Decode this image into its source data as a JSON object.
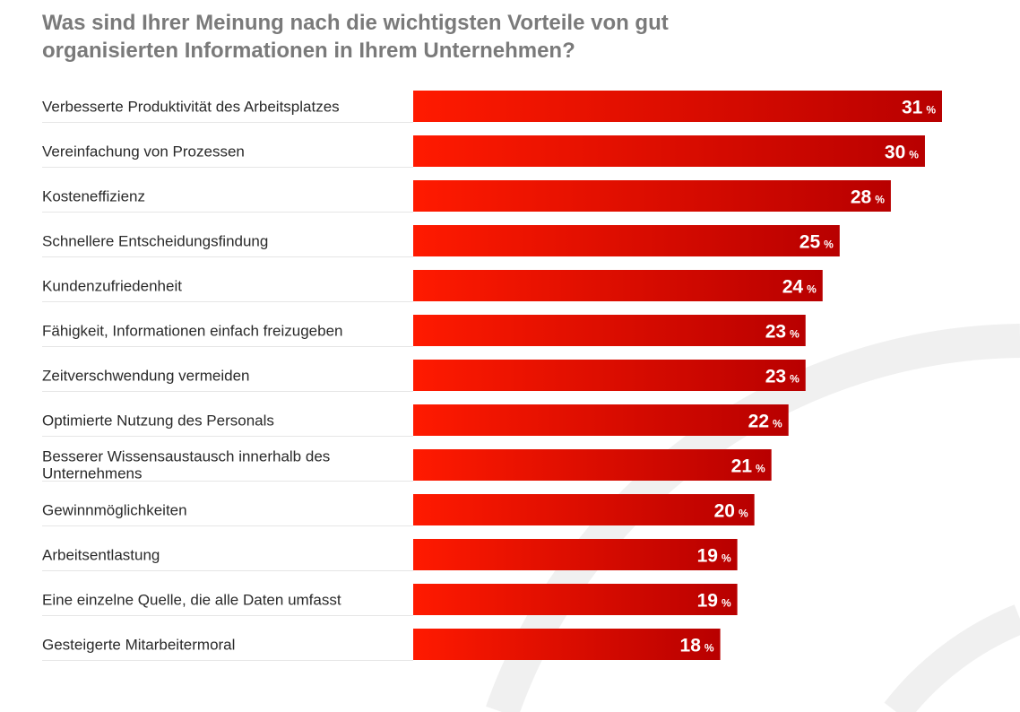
{
  "title": "Was sind Ihrer Meinung nach die wichtigsten Vorteile von gut organisierten Informationen in Ihrem Unternehmen?",
  "colors": {
    "bar_start": "#ff1a00",
    "bar_end": "#b80000",
    "separator": "#e6e6e6",
    "background_arc": "#f0f0f0"
  },
  "chart_data": {
    "type": "bar",
    "orientation": "horizontal",
    "unit": "%",
    "categories": [
      "Verbesserte Produktivität des Arbeitsplatzes",
      "Vereinfachung von Prozessen",
      "Kosteneffizienz",
      "Schnellere Entscheidungsfindung",
      "Kundenzufriedenheit",
      "Fähigkeit, Informationen einfach freizugeben",
      "Zeitverschwendung vermeiden",
      "Optimierte Nutzung des Personals",
      "Besserer Wissensaustausch innerhalb des Unternehmens",
      "Gewinnmöglichkeiten",
      "Arbeitsentlastung",
      "Eine einzelne Quelle, die alle Daten umfasst",
      "Gesteigerte Mitarbeitermoral"
    ],
    "values": [
      31,
      30,
      28,
      25,
      24,
      23,
      23,
      22,
      21,
      20,
      19,
      19,
      18
    ],
    "xlim": [
      0,
      31
    ],
    "grid": false,
    "legend": "none"
  }
}
